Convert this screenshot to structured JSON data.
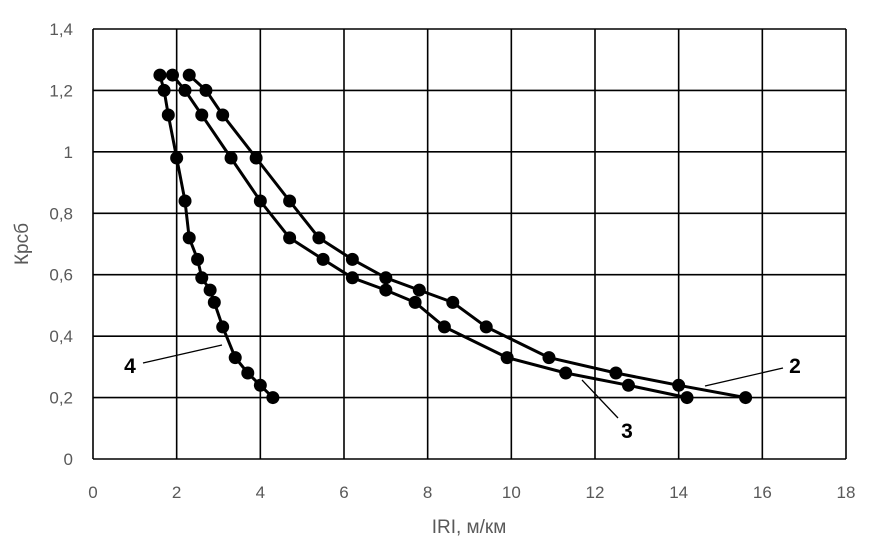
{
  "chart_data": {
    "type": "line",
    "xlabel": "IRI, м/км",
    "ylabel": "Крсб",
    "xlim": [
      0,
      18
    ],
    "ylim": [
      0,
      1.4
    ],
    "x_ticks": [
      "0",
      "2",
      "4",
      "6",
      "8",
      "10",
      "12",
      "14",
      "16",
      "18"
    ],
    "y_ticks": [
      "0",
      "0,2",
      "0,4",
      "0,6",
      "0,8",
      "1",
      "1,2",
      "1,4"
    ],
    "grid": true,
    "series": [
      {
        "name": "2",
        "points": [
          [
            2.3,
            1.25
          ],
          [
            2.7,
            1.2
          ],
          [
            3.1,
            1.12
          ],
          [
            3.9,
            0.98
          ],
          [
            4.7,
            0.84
          ],
          [
            5.4,
            0.72
          ],
          [
            6.2,
            0.65
          ],
          [
            7.0,
            0.59
          ],
          [
            7.8,
            0.55
          ],
          [
            8.6,
            0.51
          ],
          [
            9.4,
            0.43
          ],
          [
            10.9,
            0.33
          ],
          [
            12.5,
            0.28
          ],
          [
            14.0,
            0.24
          ],
          [
            15.6,
            0.2
          ]
        ]
      },
      {
        "name": "3",
        "points": [
          [
            1.9,
            1.25
          ],
          [
            2.2,
            1.2
          ],
          [
            2.6,
            1.12
          ],
          [
            3.3,
            0.98
          ],
          [
            4.0,
            0.84
          ],
          [
            4.7,
            0.72
          ],
          [
            5.5,
            0.65
          ],
          [
            6.2,
            0.59
          ],
          [
            7.0,
            0.55
          ],
          [
            7.7,
            0.51
          ],
          [
            8.4,
            0.43
          ],
          [
            9.9,
            0.33
          ],
          [
            11.3,
            0.28
          ],
          [
            12.8,
            0.24
          ],
          [
            14.2,
            0.2
          ]
        ]
      },
      {
        "name": "4",
        "points": [
          [
            1.6,
            1.25
          ],
          [
            1.7,
            1.2
          ],
          [
            1.8,
            1.12
          ],
          [
            2.0,
            0.98
          ],
          [
            2.2,
            0.84
          ],
          [
            2.3,
            0.72
          ],
          [
            2.5,
            0.65
          ],
          [
            2.6,
            0.59
          ],
          [
            2.8,
            0.55
          ],
          [
            2.9,
            0.51
          ],
          [
            3.1,
            0.43
          ],
          [
            3.4,
            0.33
          ],
          [
            3.7,
            0.28
          ],
          [
            4.0,
            0.24
          ],
          [
            4.3,
            0.2
          ]
        ]
      }
    ],
    "annotations": [
      "2",
      "3",
      "4"
    ]
  }
}
